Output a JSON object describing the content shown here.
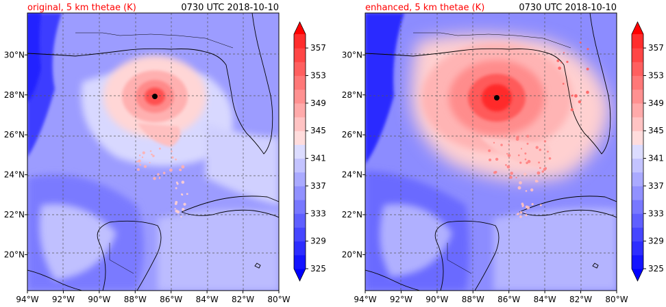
{
  "panels": [
    {
      "title_left": "original, 5 km thetae (K)",
      "title_right": "0730 UTC 2018-10-10",
      "eye": {
        "lon": -87.0,
        "lat": 27.95
      },
      "intensity": "weak"
    },
    {
      "title_left": "enhanced, 5 km thetae (K)",
      "title_right": "0730 UTC 2018-10-10",
      "eye": {
        "lon": -86.7,
        "lat": 27.9
      },
      "intensity": "strong"
    }
  ],
  "map_extent": {
    "lon_min": -94,
    "lon_max": -80,
    "lat_min": 18.2,
    "lat_max": 32.1
  },
  "lon_ticks": [
    {
      "value": -94,
      "label": "94°W"
    },
    {
      "value": -92,
      "label": "92°W"
    },
    {
      "value": -90,
      "label": "90°W"
    },
    {
      "value": -88,
      "label": "88°W"
    },
    {
      "value": -86,
      "label": "86°W"
    },
    {
      "value": -84,
      "label": "84°W"
    },
    {
      "value": -82,
      "label": "82°W"
    },
    {
      "value": -80,
      "label": "80°W"
    }
  ],
  "lat_ticks": [
    {
      "value": 20,
      "label": "20°N"
    },
    {
      "value": 22,
      "label": "22°N"
    },
    {
      "value": 24,
      "label": "24°N"
    },
    {
      "value": 26,
      "label": "26°N"
    },
    {
      "value": 28,
      "label": "28°N"
    },
    {
      "value": 30,
      "label": "30°N"
    }
  ],
  "colorbar": {
    "levels": [
      325,
      327,
      329,
      331,
      333,
      335,
      337,
      339,
      341,
      343,
      345,
      347,
      349,
      351,
      353,
      355,
      357,
      359
    ],
    "tick_labels": [
      "325",
      "329",
      "333",
      "337",
      "341",
      "345",
      "349",
      "353",
      "357"
    ],
    "colors": [
      "#1414ff",
      "#2d2dff",
      "#4646ff",
      "#5f5fff",
      "#7878ff",
      "#9191ff",
      "#aaaaff",
      "#c3c3ff",
      "#dcdcff",
      "#ffdcdc",
      "#ffc3c3",
      "#ffaaaa",
      "#ff9191",
      "#ff7878",
      "#ff5f5f",
      "#ff4646",
      "#ff2d2d"
    ],
    "under_color": "#0000ff",
    "over_color": "#ff0000"
  },
  "colors": {
    "title_red": "#ff0000",
    "grid": "#555555",
    "coast": "#000000"
  }
}
